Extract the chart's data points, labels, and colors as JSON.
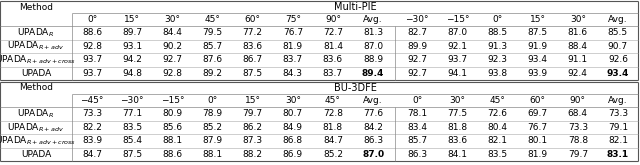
{
  "title_multipie": "Multi-PIE",
  "title_bu3dfe": "BU-3DFE",
  "col_header_multipie_left": [
    "0°",
    "15°",
    "30°",
    "45°",
    "60°",
    "75°",
    "90°",
    "Avg."
  ],
  "col_header_multipie_right": [
    "−30°",
    "−15°",
    "0°",
    "15°",
    "30°",
    "Avg."
  ],
  "col_header_bu3dfe_left": [
    "−45°",
    "−30°",
    "−15°",
    "0°",
    "15°",
    "30°",
    "45°",
    "Avg."
  ],
  "col_header_bu3dfe_right": [
    "0°",
    "30°",
    "45°",
    "60°",
    "90°",
    "Avg."
  ],
  "multipie_left": [
    [
      88.6,
      89.7,
      84.4,
      79.5,
      77.2,
      76.7,
      72.7,
      81.3
    ],
    [
      92.8,
      93.1,
      90.2,
      85.7,
      83.6,
      81.9,
      81.4,
      87.0
    ],
    [
      93.7,
      94.2,
      92.7,
      87.6,
      86.7,
      83.7,
      83.6,
      88.9
    ],
    [
      93.7,
      94.8,
      92.8,
      89.2,
      87.5,
      84.3,
      83.7,
      89.4
    ]
  ],
  "multipie_right": [
    [
      82.7,
      87.0,
      88.5,
      87.5,
      81.6,
      85.5
    ],
    [
      89.9,
      92.1,
      91.3,
      91.9,
      88.4,
      90.7
    ],
    [
      92.7,
      93.7,
      92.3,
      93.4,
      91.1,
      92.6
    ],
    [
      92.7,
      94.1,
      93.8,
      93.9,
      92.4,
      93.4
    ]
  ],
  "bu3dfe_left": [
    [
      73.3,
      77.1,
      80.9,
      78.9,
      79.7,
      80.7,
      72.8,
      77.6
    ],
    [
      82.2,
      83.5,
      85.6,
      85.2,
      86.2,
      84.9,
      81.8,
      84.2
    ],
    [
      83.9,
      85.4,
      88.1,
      87.9,
      87.3,
      86.8,
      84.7,
      86.3
    ],
    [
      84.7,
      87.5,
      88.6,
      88.1,
      88.2,
      86.9,
      85.2,
      87.0
    ]
  ],
  "bu3dfe_right": [
    [
      78.1,
      77.5,
      72.6,
      69.7,
      68.4,
      73.3
    ],
    [
      83.4,
      81.8,
      80.4,
      76.7,
      73.3,
      79.1
    ],
    [
      85.7,
      83.6,
      82.1,
      80.1,
      78.8,
      82.1
    ],
    [
      86.3,
      84.1,
      83.5,
      81.9,
      79.7,
      83.1
    ]
  ],
  "text_color": "#000000",
  "font_size": 6.5,
  "header_font_size": 7.0,
  "method_font_size": 6.5,
  "figwidth": 6.4,
  "figheight": 1.65,
  "dpi": 100
}
